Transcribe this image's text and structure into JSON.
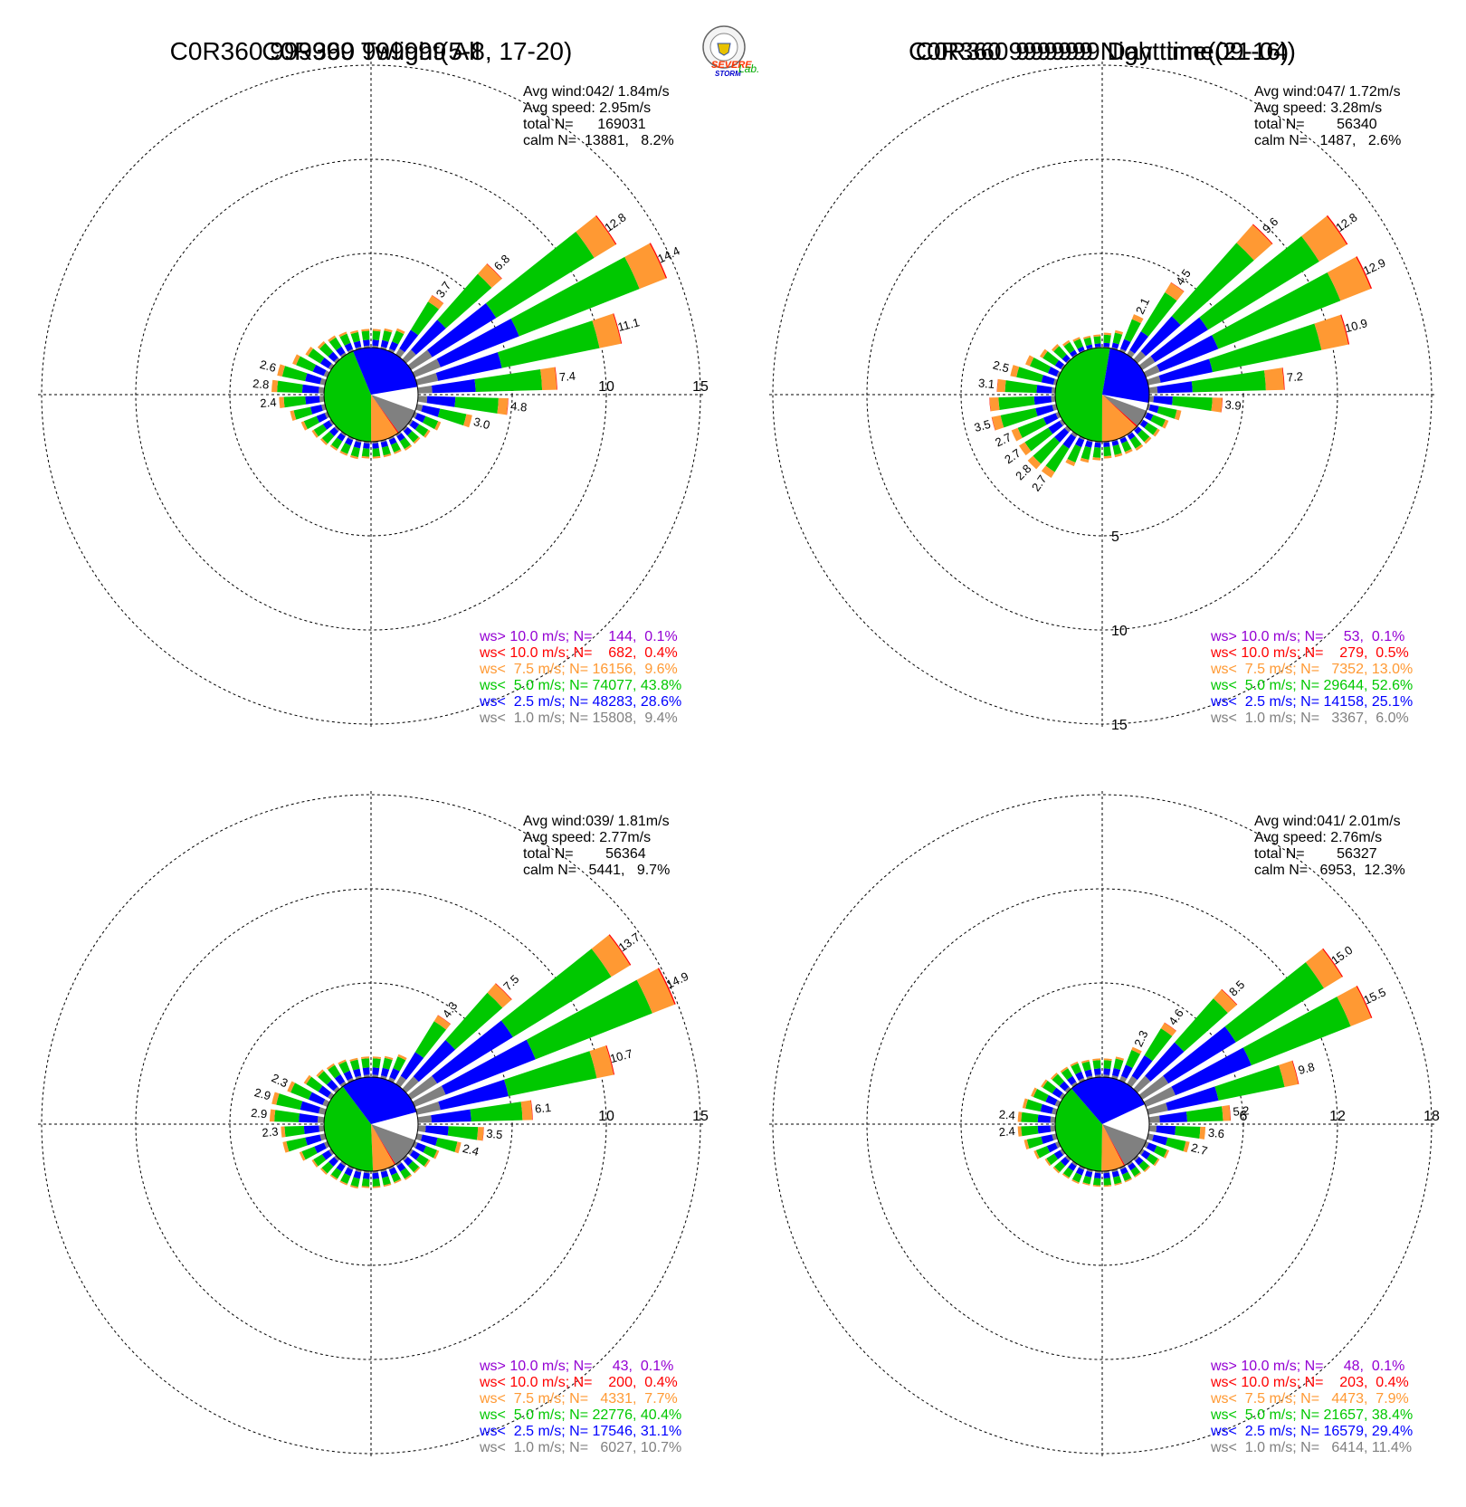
{
  "logo": {
    "name": "severe-storm-lab-logo",
    "text": [
      "SEVERE",
      "STORM",
      "Lab."
    ]
  },
  "colors": {
    "gt10": "#9400d3",
    "lt10": "#ff0000",
    "lt7_5": "#ff9933",
    "lt5": "#00c800",
    "lt2_5": "#0000ff",
    "lt1": "#808080",
    "grid": "#000000"
  },
  "chart_data": [
    {
      "type": "wind_rose",
      "title": "C0R360 999999 All",
      "stats": [
        "Avg wind:042/ 1.84m/s",
        "Avg speed: 2.95m/s",
        "total N=      169031",
        "calm N=  13881,   8.2%"
      ],
      "ring_values": [
        5,
        10,
        15
      ],
      "ring_label_direction": "east",
      "legend": [
        {
          "label": "ws> 10.0 m/s; N=    144,  0.1%",
          "color": "#9400d3"
        },
        {
          "label": "ws< 10.0 m/s; N=    682,  0.4%",
          "color": "#ff0000"
        },
        {
          "label": "ws<  7.5 m/s; N= 16156,  9.6%",
          "color": "#ff9933"
        },
        {
          "label": "ws<  5.0 m/s; N= 74077, 43.8%",
          "color": "#00c800"
        },
        {
          "label": "ws<  2.5 m/s; N= 48283, 28.6%",
          "color": "#0000ff"
        },
        {
          "label": "ws<  1.0 m/s; N= 15808,  9.4%",
          "color": "#808080"
        }
      ],
      "pie": [
        9.4,
        28.6,
        43.8,
        9.6,
        0.4
      ],
      "directions_deg": [
        5,
        15,
        25,
        35,
        45,
        55,
        65,
        75,
        85,
        95,
        105,
        115,
        125,
        135,
        145,
        155,
        165,
        175,
        185,
        195,
        205,
        215,
        225,
        235,
        245,
        255,
        265,
        275,
        285,
        295,
        305,
        315,
        325,
        335,
        345,
        355
      ],
      "totals": [
        1.0,
        1.1,
        1.3,
        3.7,
        6.8,
        12.8,
        14.4,
        11.1,
        7.4,
        4.8,
        3.0,
        1.5,
        1.2,
        1.0,
        1.0,
        0.9,
        0.9,
        0.9,
        0.9,
        1.0,
        1.0,
        1.0,
        1.1,
        1.2,
        1.5,
        1.9,
        2.4,
        2.8,
        2.6,
        2.0,
        1.6,
        1.3,
        1.2,
        1.1,
        1.0,
        1.0
      ],
      "labels": [
        {
          "dir": 35,
          "text": "3.7"
        },
        {
          "dir": 45,
          "text": "6.8"
        },
        {
          "dir": 55,
          "text": "12.8"
        },
        {
          "dir": 65,
          "text": "14.4"
        },
        {
          "dir": 75,
          "text": "11.1"
        },
        {
          "dir": 85,
          "text": "7.4"
        },
        {
          "dir": 95,
          "text": "4.8"
        },
        {
          "dir": 105,
          "text": "3.0"
        },
        {
          "dir": 265,
          "text": "2.4"
        },
        {
          "dir": 275,
          "text": "2.8"
        },
        {
          "dir": 285,
          "text": "2.6"
        }
      ]
    },
    {
      "type": "wind_rose",
      "title": "C0R360 999999 Day time(09-16)",
      "stats": [
        "Avg wind:047/ 1.72m/s",
        "Avg speed: 3.28m/s",
        "total N=        56340",
        "calm N=   1487,   2.6%"
      ],
      "ring_values": [
        5,
        10,
        15
      ],
      "ring_label_direction": "south",
      "legend": [
        {
          "label": "ws> 10.0 m/s; N=     53,  0.1%",
          "color": "#9400d3"
        },
        {
          "label": "ws< 10.0 m/s; N=    279,  0.5%",
          "color": "#ff0000"
        },
        {
          "label": "ws<  7.5 m/s; N=   7352, 13.0%",
          "color": "#ff9933"
        },
        {
          "label": "ws<  5.0 m/s; N= 29644, 52.6%",
          "color": "#00c800"
        },
        {
          "label": "ws<  2.5 m/s; N= 14158, 25.1%",
          "color": "#0000ff"
        },
        {
          "label": "ws<  1.0 m/s; N=   3367,  6.0%",
          "color": "#808080"
        }
      ],
      "pie": [
        6.0,
        25.1,
        52.6,
        13.0,
        0.5
      ],
      "directions_deg": [
        5,
        15,
        25,
        35,
        45,
        55,
        65,
        75,
        85,
        95,
        105,
        115,
        125,
        135,
        145,
        155,
        165,
        175,
        185,
        195,
        205,
        215,
        225,
        235,
        245,
        255,
        265,
        275,
        285,
        295,
        305,
        315,
        325,
        335,
        345,
        355
      ],
      "totals": [
        0.8,
        1.0,
        2.1,
        4.5,
        9.6,
        12.8,
        12.9,
        10.9,
        7.2,
        3.9,
        1.8,
        1.3,
        1.1,
        1.0,
        1.0,
        0.9,
        0.9,
        0.9,
        1.0,
        1.2,
        1.6,
        2.7,
        2.8,
        2.7,
        2.7,
        3.5,
        3.5,
        3.1,
        2.5,
        1.9,
        1.4,
        1.1,
        0.9,
        0.8,
        0.7,
        0.7
      ],
      "labels": [
        {
          "dir": 25,
          "text": "2.1"
        },
        {
          "dir": 35,
          "text": "4.5"
        },
        {
          "dir": 45,
          "text": "9.6"
        },
        {
          "dir": 55,
          "text": "12.8"
        },
        {
          "dir": 65,
          "text": "12.9"
        },
        {
          "dir": 75,
          "text": "10.9"
        },
        {
          "dir": 85,
          "text": "7.2"
        },
        {
          "dir": 95,
          "text": "3.9"
        },
        {
          "dir": 215,
          "text": "2.7"
        },
        {
          "dir": 225,
          "text": "2.8"
        },
        {
          "dir": 235,
          "text": "2.7"
        },
        {
          "dir": 245,
          "text": "2.7"
        },
        {
          "dir": 255,
          "text": "3.5"
        },
        {
          "dir": 275,
          "text": "3.1"
        },
        {
          "dir": 285,
          "text": "2.5"
        }
      ]
    },
    {
      "type": "wind_rose",
      "title": "C0R360 999999 Twlight(5-8, 17-20)",
      "stats": [
        "Avg wind:039/ 1.81m/s",
        "Avg speed: 2.77m/s",
        "total N=        56364",
        "calm N=   5441,   9.7%"
      ],
      "ring_values": [
        5,
        10,
        15
      ],
      "ring_label_direction": "east",
      "legend": [
        {
          "label": "ws> 10.0 m/s; N=     43,  0.1%",
          "color": "#9400d3"
        },
        {
          "label": "ws< 10.0 m/s; N=    200,  0.4%",
          "color": "#ff0000"
        },
        {
          "label": "ws<  7.5 m/s; N=   4331,  7.7%",
          "color": "#ff9933"
        },
        {
          "label": "ws<  5.0 m/s; N= 22776, 40.4%",
          "color": "#00c800"
        },
        {
          "label": "ws<  2.5 m/s; N= 17546, 31.1%",
          "color": "#0000ff"
        },
        {
          "label": "ws<  1.0 m/s; N=   6027, 10.7%",
          "color": "#808080"
        }
      ],
      "pie": [
        10.7,
        31.1,
        40.4,
        7.7,
        0.4
      ],
      "directions_deg": [
        5,
        15,
        25,
        35,
        45,
        55,
        65,
        75,
        85,
        95,
        105,
        115,
        125,
        135,
        145,
        155,
        165,
        175,
        185,
        195,
        205,
        215,
        225,
        235,
        245,
        255,
        265,
        275,
        285,
        295,
        305,
        315,
        325,
        335,
        345,
        355
      ],
      "totals": [
        1.1,
        1.2,
        1.5,
        4.3,
        7.5,
        13.7,
        14.9,
        10.7,
        6.1,
        3.5,
        2.4,
        1.4,
        1.2,
        1.0,
        1.0,
        0.9,
        0.9,
        0.9,
        0.9,
        1.0,
        1.0,
        1.0,
        1.1,
        1.2,
        1.6,
        2.3,
        2.3,
        2.9,
        2.9,
        2.3,
        1.7,
        1.4,
        1.3,
        1.2,
        1.1,
        1.1
      ],
      "labels": [
        {
          "dir": 35,
          "text": "4.3"
        },
        {
          "dir": 45,
          "text": "7.5"
        },
        {
          "dir": 55,
          "text": "13.7"
        },
        {
          "dir": 65,
          "text": "14.9"
        },
        {
          "dir": 75,
          "text": "10.7"
        },
        {
          "dir": 85,
          "text": "6.1"
        },
        {
          "dir": 95,
          "text": "3.5"
        },
        {
          "dir": 105,
          "text": "2.4"
        },
        {
          "dir": 265,
          "text": "2.3"
        },
        {
          "dir": 275,
          "text": "2.9"
        },
        {
          "dir": 285,
          "text": "2.9"
        },
        {
          "dir": 295,
          "text": "2.3"
        }
      ]
    },
    {
      "type": "wind_rose",
      "title": "C0R360 999999 Night time(21-04)",
      "stats": [
        "Avg wind:041/ 2.01m/s",
        "Avg speed: 2.76m/s",
        "total N=        56327",
        "calm N=   6953,  12.3%"
      ],
      "ring_values": [
        6,
        12,
        18
      ],
      "ring_label_direction": "east",
      "legend": [
        {
          "label": "ws> 10.0 m/s; N=     48,  0.1%",
          "color": "#9400d3"
        },
        {
          "label": "ws< 10.0 m/s; N=    203,  0.4%",
          "color": "#ff0000"
        },
        {
          "label": "ws<  7.5 m/s; N=   4473,  7.9%",
          "color": "#ff9933"
        },
        {
          "label": "ws<  5.0 m/s; N= 21657, 38.4%",
          "color": "#00c800"
        },
        {
          "label": "ws<  2.5 m/s; N= 16579, 29.4%",
          "color": "#0000ff"
        },
        {
          "label": "ws<  1.0 m/s; N=   6414, 11.4%",
          "color": "#808080"
        }
      ],
      "pie": [
        11.4,
        29.4,
        38.4,
        7.9,
        0.4
      ],
      "directions_deg": [
        5,
        15,
        25,
        35,
        45,
        55,
        65,
        75,
        85,
        95,
        105,
        115,
        125,
        135,
        145,
        155,
        165,
        175,
        185,
        195,
        205,
        215,
        225,
        235,
        245,
        255,
        265,
        275,
        285,
        295,
        305,
        315,
        325,
        335,
        345,
        355
      ],
      "totals": [
        1.2,
        1.4,
        2.3,
        4.6,
        8.5,
        15.0,
        15.5,
        9.8,
        5.2,
        3.6,
        2.7,
        1.6,
        1.3,
        1.1,
        1.0,
        1.0,
        1.0,
        1.0,
        1.0,
        1.0,
        1.1,
        1.1,
        1.2,
        1.3,
        1.7,
        2.1,
        2.4,
        2.4,
        2.2,
        1.9,
        1.6,
        1.4,
        1.3,
        1.3,
        1.2,
        1.2
      ],
      "labels": [
        {
          "dir": 25,
          "text": "2.3"
        },
        {
          "dir": 35,
          "text": "4.6"
        },
        {
          "dir": 45,
          "text": "8.5"
        },
        {
          "dir": 55,
          "text": "15.0"
        },
        {
          "dir": 65,
          "text": "15.5"
        },
        {
          "dir": 75,
          "text": "9.8"
        },
        {
          "dir": 85,
          "text": "5.2"
        },
        {
          "dir": 95,
          "text": "3.6"
        },
        {
          "dir": 105,
          "text": "2.7"
        },
        {
          "dir": 265,
          "text": "2.4"
        },
        {
          "dir": 275,
          "text": "2.4"
        }
      ]
    }
  ]
}
